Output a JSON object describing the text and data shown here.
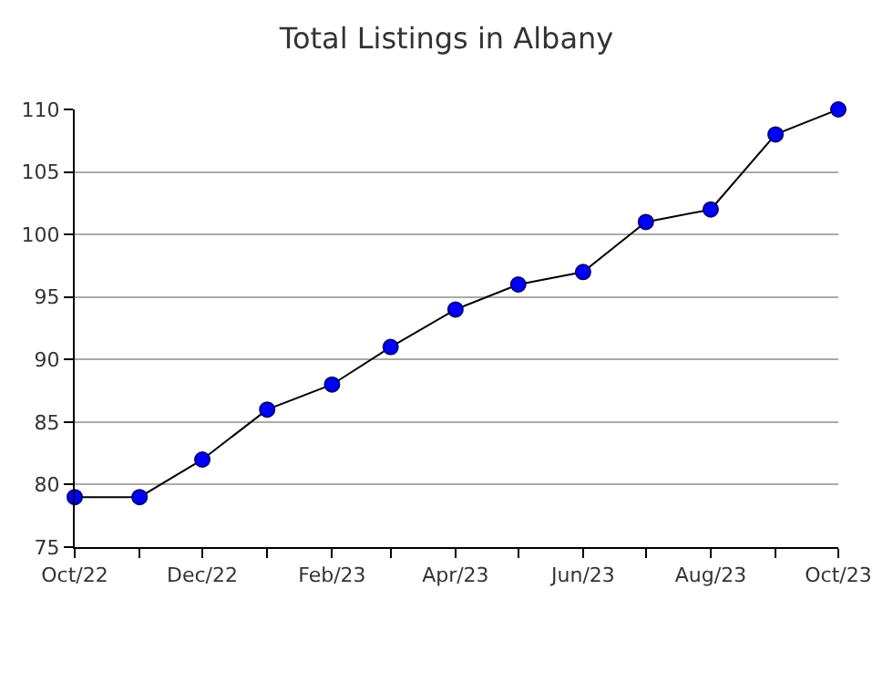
{
  "chart_data": {
    "type": "line",
    "title": "Total Listings in Albany",
    "x": [
      "2022-10",
      "2022-11",
      "2022-12",
      "2023-01",
      "2023-02",
      "2023-03",
      "2023-04",
      "2023-05",
      "2023-06",
      "2023-07",
      "2023-08",
      "2023-09",
      "2023-10"
    ],
    "series": [
      {
        "color": "#0000ff",
        "values": [
          79,
          79,
          82,
          86,
          88,
          91,
          94,
          96,
          97,
          101,
          102,
          108,
          110
        ]
      }
    ],
    "xlim": [
      "2022-10",
      "2023-10"
    ],
    "xticks": [
      {
        "value": "2022-10",
        "label": "Oct/22"
      },
      {
        "value": "2022-11",
        "label": null
      },
      {
        "value": "2022-12",
        "label": "Dec/22"
      },
      {
        "value": "2023-01",
        "label": null
      },
      {
        "value": "2023-02",
        "label": "Feb/23"
      },
      {
        "value": "2023-03",
        "label": null
      },
      {
        "value": "2023-04",
        "label": "Apr/23"
      },
      {
        "value": "2023-05",
        "label": null
      },
      {
        "value": "2023-06",
        "label": "Jun/23"
      },
      {
        "value": "2023-07",
        "label": null
      },
      {
        "value": "2023-08",
        "label": "Aug/23"
      },
      {
        "value": "2023-09",
        "label": null
      },
      {
        "value": "2023-10",
        "label": "Oct/23"
      }
    ],
    "ylim": [
      75,
      110
    ],
    "yticks": [
      75,
      80,
      85,
      90,
      95,
      100,
      105,
      110
    ],
    "grid": "y",
    "marker": "circle",
    "line_style": "solid"
  }
}
